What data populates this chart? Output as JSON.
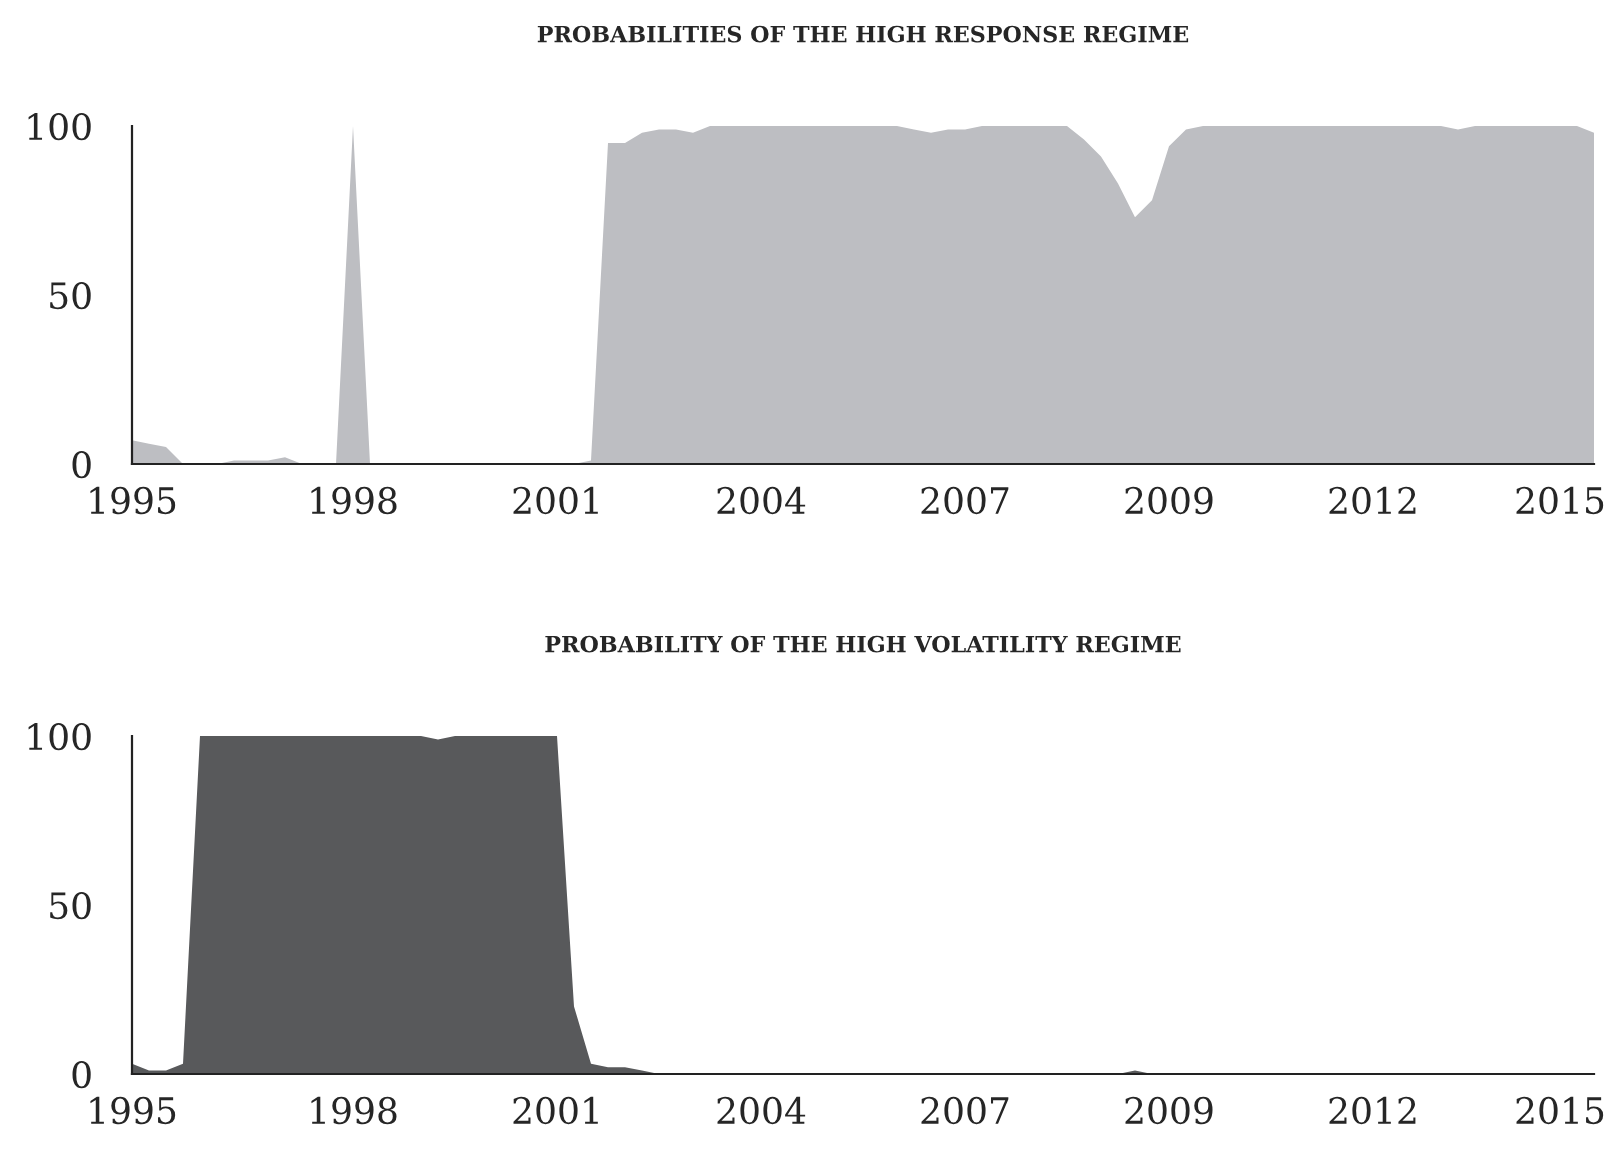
{
  "chart_data": [
    {
      "type": "area",
      "title": "PROBABILITIES OF THE HIGH RESPONSE REGIME",
      "categories": [
        "1995",
        null,
        null,
        null,
        null,
        null,
        null,
        null,
        null,
        null,
        null,
        null,
        null,
        "1998",
        null,
        null,
        null,
        null,
        null,
        null,
        null,
        null,
        null,
        null,
        null,
        "2001",
        null,
        null,
        null,
        null,
        null,
        null,
        null,
        null,
        null,
        null,
        null,
        "2004",
        null,
        null,
        null,
        null,
        null,
        null,
        null,
        null,
        null,
        null,
        null,
        "2007",
        null,
        null,
        null,
        null,
        null,
        null,
        null,
        null,
        null,
        null,
        null,
        "2009",
        null,
        null,
        null,
        null,
        null,
        null,
        null,
        null,
        null,
        null,
        null,
        "2012",
        null,
        null,
        null,
        null,
        null,
        null,
        null,
        null,
        null,
        null,
        "2015",
        null,
        null
      ],
      "series": [
        {
          "color": "#bdbec2",
          "values": [
            7,
            6,
            5,
            0,
            0,
            0,
            1,
            1,
            1,
            2,
            0,
            0,
            0,
            100,
            0,
            0,
            0,
            0,
            0,
            0,
            0,
            0,
            0,
            0,
            0,
            0,
            0,
            1,
            95,
            95,
            98,
            99,
            99,
            98,
            100,
            100,
            100,
            100,
            100,
            100,
            100,
            100,
            100,
            100,
            100,
            100,
            99,
            98,
            99,
            99,
            100,
            100,
            100,
            100,
            100,
            100,
            96,
            91,
            83,
            73,
            78,
            94,
            99,
            100,
            100,
            100,
            100,
            100,
            100,
            100,
            100,
            100,
            100,
            100,
            100,
            100,
            100,
            100,
            99,
            100,
            100,
            100,
            100,
            100,
            100,
            100,
            98
          ]
        }
      ],
      "ylim": [
        0,
        100
      ],
      "yticks": [
        0,
        50,
        100
      ],
      "grid": false,
      "legend": false
    },
    {
      "type": "area",
      "title": "PROBABILITY OF THE HIGH VOLATILITY REGIME",
      "categories": [
        "1995",
        null,
        null,
        null,
        null,
        null,
        null,
        null,
        null,
        null,
        null,
        null,
        null,
        "1998",
        null,
        null,
        null,
        null,
        null,
        null,
        null,
        null,
        null,
        null,
        null,
        "2001",
        null,
        null,
        null,
        null,
        null,
        null,
        null,
        null,
        null,
        null,
        null,
        "2004",
        null,
        null,
        null,
        null,
        null,
        null,
        null,
        null,
        null,
        null,
        null,
        "2007",
        null,
        null,
        null,
        null,
        null,
        null,
        null,
        null,
        null,
        null,
        null,
        "2009",
        null,
        null,
        null,
        null,
        null,
        null,
        null,
        null,
        null,
        null,
        null,
        "2012",
        null,
        null,
        null,
        null,
        null,
        null,
        null,
        null,
        null,
        null,
        "2015",
        null,
        null
      ],
      "series": [
        {
          "color": "#58595b",
          "values": [
            3,
            1,
            1,
            3,
            100,
            100,
            100,
            100,
            100,
            100,
            100,
            100,
            100,
            100,
            100,
            100,
            100,
            100,
            99,
            100,
            100,
            100,
            100,
            100,
            100,
            100,
            20,
            3,
            2,
            2,
            1,
            0,
            0,
            0,
            0,
            0,
            0,
            0,
            0,
            0,
            0,
            0,
            0,
            0,
            0,
            0,
            0,
            0,
            0,
            0,
            0,
            0,
            0,
            0,
            0,
            0,
            0,
            0,
            0,
            1,
            0,
            0,
            0,
            0,
            0,
            0,
            0,
            0,
            0,
            0,
            0,
            0,
            0,
            0,
            0,
            0,
            0,
            0,
            0,
            0,
            0,
            0,
            0,
            0,
            0,
            0,
            0
          ]
        }
      ],
      "ylim": [
        0,
        100
      ],
      "yticks": [
        0,
        50,
        100
      ],
      "grid": false,
      "legend": false
    }
  ]
}
